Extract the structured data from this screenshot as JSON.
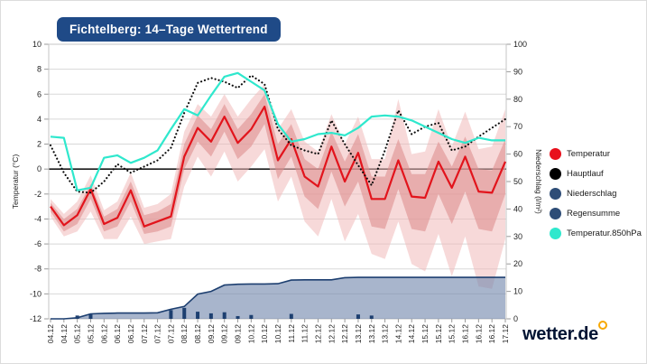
{
  "header": {
    "badge_title": "Fichtelberg: 14–Tage Wettertrend"
  },
  "brand": {
    "logo_text": "wetter.de",
    "logo_color": "#021433",
    "ring_color": "#f7a800"
  },
  "legend": {
    "position": "right",
    "items": [
      {
        "label": "Temperatur",
        "color": "#e8101c"
      },
      {
        "label": "Hauptlauf",
        "color": "#000000"
      },
      {
        "label": "Niederschlag",
        "color": "#2e4d77"
      },
      {
        "label": "Regensumme",
        "color": "#2e4d77"
      },
      {
        "label": "Temperatur.850hPa",
        "color": "#2fe8cd"
      }
    ]
  },
  "chart_data": {
    "type": "line",
    "title": "Fichtelberg: 14–Tage Wettertrend",
    "grid": true,
    "x_tick_labels": [
      "04.12",
      "04.12",
      "05.12",
      "05.12",
      "06.12",
      "06.12",
      "06.12",
      "07.12",
      "07.12",
      "07.12",
      "08.12",
      "08.12",
      "09.12",
      "09.12",
      "09.12",
      "10.12",
      "10.12",
      "10.12",
      "11.12",
      "11.12",
      "12.12",
      "12.12",
      "12.12",
      "13.12",
      "13.12",
      "13.12",
      "14.12",
      "14.12",
      "15.12",
      "15.12",
      "15.12",
      "16.12",
      "16.12",
      "16.12",
      "17.12"
    ],
    "y_left": {
      "label": "Temperatur (°C)",
      "min": -12,
      "max": 10,
      "step": 2,
      "ticks": [
        10,
        8,
        6,
        4,
        2,
        0,
        -2,
        -4,
        -6,
        -8,
        -10,
        -12
      ]
    },
    "y_right": {
      "label": "Niederschlag (l/m²)",
      "min": 0,
      "max": 100,
      "step": 10,
      "ticks": [
        100,
        90,
        80,
        70,
        60,
        50,
        40,
        30,
        20,
        10,
        0
      ]
    },
    "series": [
      {
        "name": "Temperatur",
        "type": "line",
        "axis": "left",
        "color": "#e2141c",
        "values": [
          -3.0,
          -4.5,
          -3.7,
          -1.6,
          -4.4,
          -3.9,
          -1.7,
          -4.6,
          -4.2,
          -3.8,
          1.0,
          3.3,
          2.2,
          4.2,
          2.1,
          3.2,
          5.0,
          0.7,
          2.4,
          -0.6,
          -1.4,
          1.8,
          -1.0,
          1.3,
          -2.4,
          -2.4,
          0.7,
          -2.2,
          -2.3,
          0.6,
          -1.5,
          1.0,
          -1.8,
          -1.9,
          0.6
        ]
      },
      {
        "name": "Hauptlauf",
        "type": "dotted-line",
        "axis": "left",
        "color": "#0a0a0a",
        "values": [
          1.9,
          -0.3,
          -1.8,
          -1.9,
          -1.0,
          0.4,
          -0.3,
          0.2,
          0.7,
          1.7,
          4.5,
          6.9,
          7.3,
          7.0,
          6.5,
          7.5,
          6.8,
          3.2,
          1.9,
          1.5,
          1.2,
          3.9,
          2.0,
          0.3,
          -1.3,
          1.5,
          4.7,
          2.8,
          3.4,
          3.7,
          1.5,
          1.8,
          2.6,
          3.3,
          4.0
        ]
      },
      {
        "name": "Temperatur.850hPa",
        "type": "line",
        "axis": "left",
        "color": "#2fe8cd",
        "values": [
          2.6,
          2.5,
          -1.7,
          -1.5,
          0.9,
          1.1,
          0.5,
          0.9,
          1.5,
          3.2,
          4.8,
          4.3,
          5.9,
          7.4,
          7.7,
          7.0,
          6.3,
          3.6,
          2.2,
          2.4,
          2.8,
          2.9,
          2.7,
          3.3,
          4.2,
          4.3,
          4.2,
          3.9,
          3.4,
          2.9,
          2.4,
          2.1,
          2.5,
          2.3,
          2.3
        ]
      },
      {
        "name": "Niederschlag",
        "type": "bar",
        "axis": "right",
        "color": "#1d3f70",
        "values": [
          0,
          0,
          1.2,
          1.6,
          0,
          0,
          0,
          0,
          0,
          3.2,
          4.0,
          2.6,
          2.0,
          2.4,
          1.0,
          1.4,
          0,
          0,
          1.8,
          0,
          0,
          0,
          0,
          1.6,
          1.2,
          0,
          0,
          0,
          0,
          0,
          0,
          0,
          0,
          0,
          0
        ]
      },
      {
        "name": "Regensumme",
        "type": "area",
        "axis": "right",
        "color": "#7288ad",
        "border_color": "#1d3f70",
        "opacity": 0.62,
        "values": [
          0,
          0,
          0.4,
          1.8,
          2.0,
          2.1,
          2.1,
          2.1,
          2.2,
          3.5,
          4.5,
          9.0,
          10.0,
          12.3,
          12.6,
          12.7,
          12.7,
          12.8,
          14.1,
          14.2,
          14.2,
          14.2,
          15.0,
          15.1,
          15.1,
          15.1,
          15.1,
          15.1,
          15.1,
          15.1,
          15.1,
          15.1,
          15.1,
          15.1,
          15.1
        ]
      },
      {
        "name": "Unsicherheitsband außen",
        "type": "band",
        "axis": "left",
        "color": "#f0b9b9",
        "opacity": 0.55,
        "upper": [
          -2.4,
          -3.6,
          -2.6,
          -0.5,
          -3.3,
          -2.6,
          -0.3,
          -3.1,
          -2.8,
          -2.0,
          3.0,
          5.2,
          4.2,
          6.0,
          4.2,
          5.6,
          6.8,
          3.2,
          4.8,
          2.2,
          1.4,
          4.4,
          2.0,
          4.2,
          0.8,
          0.8,
          5.6,
          1.2,
          1.4,
          4.8,
          1.8,
          4.6,
          1.6,
          1.8,
          4.8
        ],
        "lower": [
          -3.8,
          -5.4,
          -5.0,
          -3.4,
          -5.6,
          -5.6,
          -3.8,
          -6.0,
          -5.8,
          -5.6,
          -1.4,
          1.0,
          -0.6,
          1.4,
          -1.0,
          0.2,
          1.6,
          -2.6,
          -0.6,
          -4.2,
          -5.4,
          -2.4,
          -5.8,
          -3.6,
          -6.8,
          -7.2,
          -4.2,
          -7.6,
          -8.2,
          -5.2,
          -8.6,
          -5.4,
          -9.4,
          -9.6,
          -5.6
        ]
      },
      {
        "name": "Unsicherheitsband innen",
        "type": "band",
        "axis": "left",
        "color": "#dd8f8f",
        "opacity": 0.6,
        "upper": [
          -2.7,
          -4.0,
          -3.2,
          -1.2,
          -3.8,
          -3.2,
          -1.0,
          -3.7,
          -3.4,
          -2.8,
          2.0,
          4.3,
          3.2,
          5.2,
          3.2,
          4.4,
          6.0,
          2.0,
          3.6,
          0.8,
          0.0,
          3.0,
          0.6,
          2.8,
          -0.6,
          -0.6,
          2.4,
          -0.4,
          -0.4,
          2.2,
          0.2,
          2.6,
          0.0,
          -0.1,
          2.4
        ],
        "lower": [
          -3.4,
          -5.0,
          -4.4,
          -2.4,
          -5.0,
          -4.6,
          -2.6,
          -5.2,
          -5.0,
          -4.6,
          0.0,
          2.2,
          1.0,
          3.0,
          0.8,
          1.8,
          3.6,
          -0.8,
          1.0,
          -2.2,
          -3.2,
          -0.2,
          -3.0,
          -1.0,
          -4.6,
          -4.8,
          -1.6,
          -4.8,
          -5.0,
          -2.0,
          -4.4,
          -1.8,
          -4.8,
          -5.0,
          -2.0
        ]
      }
    ],
    "colors": {
      "grid": "#d8d8d8",
      "zero_line": "#1a1a1a",
      "frame": "#c4c4c4",
      "tick_text": "#222222",
      "badge_background": "#1f4a87"
    }
  }
}
